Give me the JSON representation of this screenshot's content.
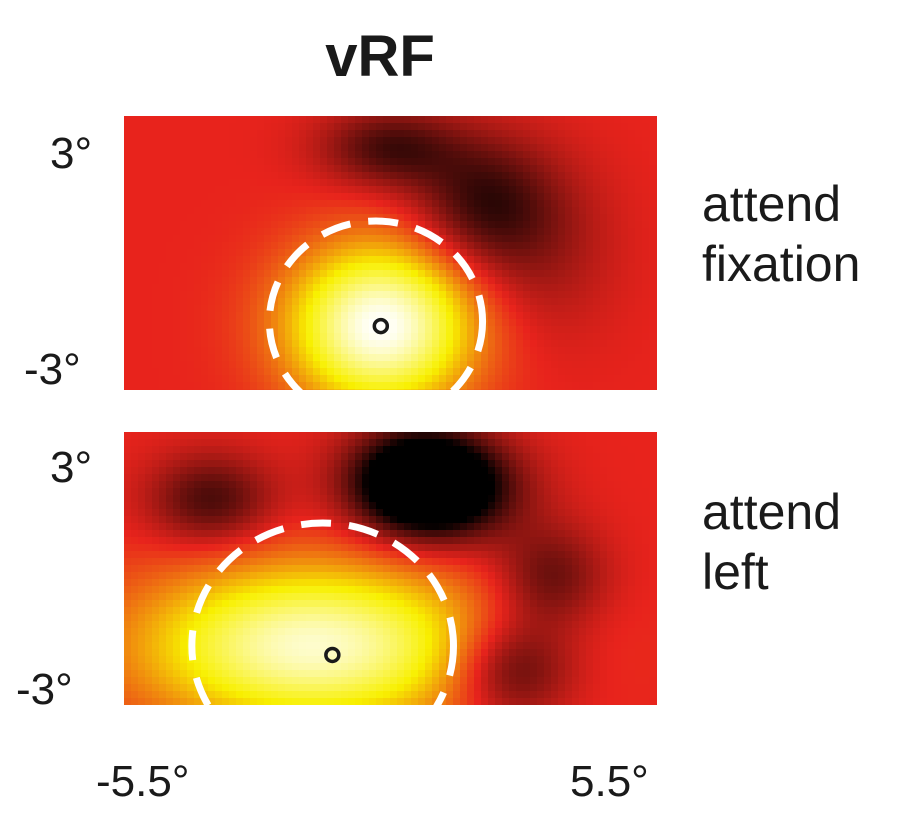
{
  "chart_data": {
    "type": "heatmap",
    "title": "vRF",
    "colormap": [
      "#000000",
      "#e8231c",
      "#f8f000",
      "#ffffff"
    ],
    "x_range": [
      -5.5,
      5.5
    ],
    "y_range": [
      -3,
      3
    ],
    "x_tick_labels": [
      "-5.5°",
      "5.5°"
    ],
    "y_tick_labels": [
      "3°",
      "-3°"
    ],
    "panels": [
      {
        "condition": [
          "attend",
          "fixation"
        ],
        "peak": {
          "x": -0.2,
          "y": -1.6
        },
        "blobs": [
          {
            "x": -0.2,
            "y": -1.6,
            "sx": 1.3,
            "sy": 1.2,
            "v": 1.0
          },
          {
            "x": 0.0,
            "y": 2.3,
            "sx": 1.0,
            "sy": 0.6,
            "v": -0.35
          },
          {
            "x": 1.9,
            "y": 1.1,
            "sx": 1.0,
            "sy": 1.0,
            "v": -0.35
          },
          {
            "x": 3.1,
            "y": 0.1,
            "sx": 1.1,
            "sy": 1.4,
            "v": -0.15
          }
        ],
        "rf_circle": {
          "cx": -0.3,
          "cy": -1.5,
          "r": 2.2
        }
      },
      {
        "condition": [
          "attend",
          "left"
        ],
        "peak": {
          "x": -1.2,
          "y": -1.9
        },
        "blobs": [
          {
            "x": -1.6,
            "y": -1.7,
            "sx": 2.4,
            "sy": 1.2,
            "v": 0.9
          },
          {
            "x": 0.6,
            "y": 1.9,
            "sx": 1.0,
            "sy": 0.8,
            "v": -0.8
          },
          {
            "x": -3.7,
            "y": 1.5,
            "sx": 0.9,
            "sy": 0.7,
            "v": -0.35
          },
          {
            "x": 1.4,
            "y": 1.7,
            "sx": 1.1,
            "sy": 0.8,
            "v": -0.3
          },
          {
            "x": 2.5,
            "y": -2.2,
            "sx": 0.9,
            "sy": 0.8,
            "v": -0.4
          },
          {
            "x": 3.3,
            "y": -0.2,
            "sx": 0.8,
            "sy": 0.8,
            "v": -0.3
          }
        ],
        "rf_circle": {
          "cx": -1.4,
          "cy": -1.7,
          "r": 2.7
        }
      }
    ]
  }
}
